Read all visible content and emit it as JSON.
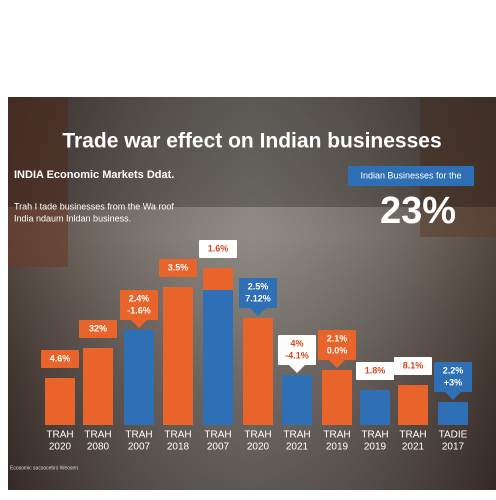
{
  "header": {
    "title": "Trade war effect on Indian businesses",
    "subtitle": "INDIA Economic Markets Ddat.",
    "description": [
      "Trah I tade businesses from the Wa roof",
      "India ndaum Inldan business."
    ]
  },
  "callout": {
    "label": "Indian Businesses for the",
    "value": "23%"
  },
  "bars": [
    {
      "label": [
        "4.6%"
      ],
      "category": [
        "TRAH",
        "2020"
      ],
      "color": "#e8642a"
    },
    {
      "label": [
        "32%"
      ],
      "category": [
        "TRAH",
        "2080"
      ],
      "color": "#e8642a"
    },
    {
      "label": [
        "2.4%",
        "-1.6%"
      ],
      "category": [
        "TRAH",
        "2007"
      ],
      "color": "#2f6fb5"
    },
    {
      "label": [
        "3.5%"
      ],
      "category": [
        "TRAH",
        "2018"
      ],
      "color": "#e8642a"
    },
    {
      "label": [
        "1.6%"
      ],
      "category": [
        "TRAH",
        "2007"
      ],
      "color": "#2f6fb5"
    },
    {
      "label": [
        "2.5%",
        "7.12%"
      ],
      "category": [
        "TRAH",
        "2020"
      ],
      "color": "#e8642a"
    },
    {
      "label": [
        "4%",
        "-4.1%"
      ],
      "category": [
        "TRAH",
        "2021"
      ],
      "color": "#2f6fb5"
    },
    {
      "label": [
        "2.1%",
        "0.0%"
      ],
      "category": [
        "TRAH",
        "2019"
      ],
      "color": "#e8642a"
    },
    {
      "label": [
        "1.8%"
      ],
      "category": [
        "TRAH",
        "2019"
      ],
      "color": "#2f6fb5"
    },
    {
      "label": [
        "8.1%"
      ],
      "category": [
        "TRAH",
        "2021"
      ],
      "color": "#e8642a"
    },
    {
      "label": [
        "2.2%",
        "+3%"
      ],
      "category": [
        "TADIE",
        "2017"
      ],
      "color": "#2f6fb5"
    }
  ],
  "footnote": "Ecosomic sacsocebrs Weosen"
}
